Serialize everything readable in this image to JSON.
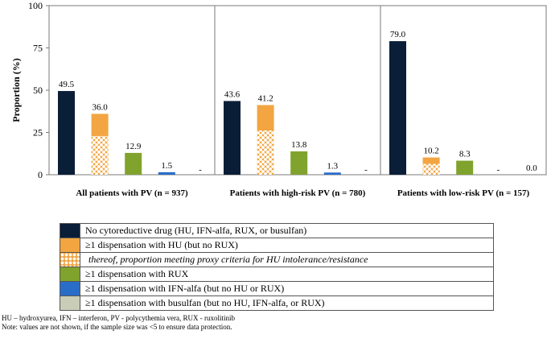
{
  "chart_data": {
    "type": "bar",
    "ylabel": "Proportion (%)",
    "ylim": [
      0,
      100
    ],
    "yticks": [
      "0",
      "25",
      "50",
      "75",
      "100"
    ],
    "groups": [
      "All patients with PV (n = 937)",
      "Patients with high-risk PV (n = 780)",
      "Patients with low-risk PV (n = 157)"
    ],
    "series": [
      {
        "name": "No cytoreductive drug (HU, IFN-alfa, RUX, or busulfan)",
        "color": "#0b1e38",
        "values": [
          49.5,
          43.6,
          79.0
        ],
        "labels": [
          "49.5",
          "43.6",
          "79.0"
        ]
      },
      {
        "name": "≥1 dispensation with HU (but no RUX)",
        "color": "#f2a541",
        "values": [
          36.0,
          41.2,
          10.2
        ],
        "labels": [
          "36.0",
          "41.2",
          "10.2"
        ]
      },
      {
        "name": "≥1 dispensation with RUX",
        "color": "#7fa32c",
        "values": [
          12.9,
          13.8,
          8.3
        ],
        "labels": [
          "12.9",
          "13.8",
          "8.3"
        ]
      },
      {
        "name": "≥1 dispensation with IFN-alfa (but no HU or RUX)",
        "color": "#2a6dc9",
        "values": [
          1.5,
          1.3,
          null
        ],
        "labels": [
          "1.5",
          "1.3",
          "-"
        ]
      },
      {
        "name": "≥1 dispensation with busulfan (but no HU, IFN-alfa, or RUX)",
        "color": "#c9cdb8",
        "values": [
          null,
          null,
          0.0
        ],
        "labels": [
          "-",
          "-",
          "0.0"
        ]
      }
    ],
    "hatched_subset": {
      "name": "thereof, proportion meeting proxy criteria for HU intolerance/resistance",
      "series": 1,
      "values": [
        22.9,
        26.2,
        6.4
      ]
    }
  },
  "legend": [
    {
      "kind": "solid",
      "color": "#0b1e38",
      "text": "No cytoreductive drug (HU, IFN-alfa, RUX, or busulfan)"
    },
    {
      "kind": "solid",
      "color": "#f2a541",
      "text": "≥1 dispensation with HU (but no RUX)"
    },
    {
      "kind": "hatch",
      "color": "#f2a541",
      "text": "thereof, proportion meeting proxy criteria for HU intolerance/resistance"
    },
    {
      "kind": "solid",
      "color": "#7fa32c",
      "text": "≥1 dispensation with RUX"
    },
    {
      "kind": "solid",
      "color": "#2a6dc9",
      "text": "≥1 dispensation with IFN-alfa (but no HU or RUX)"
    },
    {
      "kind": "solid",
      "color": "#c9cdb8",
      "text": "≥1 dispensation with busulfan (but no HU, IFN-alfa, or RUX)"
    }
  ],
  "footnotes": {
    "abbreviations": "HU – hydroxyurea, IFN – interferon, PV - polycythemia vera, RUX - ruxolitinib",
    "note": "Note: values are not shown, if the sample size was <5 to ensure data protection."
  }
}
